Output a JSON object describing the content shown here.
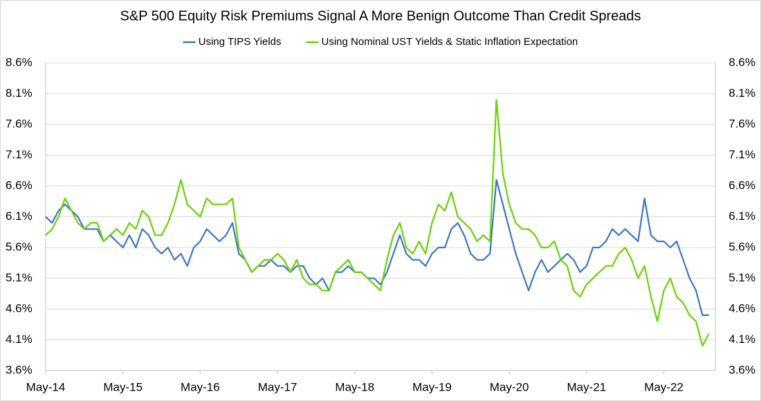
{
  "chart_data": {
    "type": "line",
    "title": "S&P 500 Equity Risk Premiums Signal A More Benign Outcome Than Credit Spreads",
    "x": [
      "2014-05",
      "2014-06",
      "2014-07",
      "2014-08",
      "2014-09",
      "2014-10",
      "2014-11",
      "2014-12",
      "2015-01",
      "2015-02",
      "2015-03",
      "2015-04",
      "2015-05",
      "2015-06",
      "2015-07",
      "2015-08",
      "2015-09",
      "2015-10",
      "2015-11",
      "2015-12",
      "2016-01",
      "2016-02",
      "2016-03",
      "2016-04",
      "2016-05",
      "2016-06",
      "2016-07",
      "2016-08",
      "2016-09",
      "2016-10",
      "2016-11",
      "2016-12",
      "2017-01",
      "2017-02",
      "2017-03",
      "2017-04",
      "2017-05",
      "2017-06",
      "2017-07",
      "2017-08",
      "2017-09",
      "2017-10",
      "2017-11",
      "2017-12",
      "2018-01",
      "2018-02",
      "2018-03",
      "2018-04",
      "2018-05",
      "2018-06",
      "2018-07",
      "2018-08",
      "2018-09",
      "2018-10",
      "2018-11",
      "2018-12",
      "2019-01",
      "2019-02",
      "2019-03",
      "2019-04",
      "2019-05",
      "2019-06",
      "2019-07",
      "2019-08",
      "2019-09",
      "2019-10",
      "2019-11",
      "2019-12",
      "2020-01",
      "2020-02",
      "2020-03",
      "2020-04",
      "2020-05",
      "2020-06",
      "2020-07",
      "2020-08",
      "2020-09",
      "2020-10",
      "2020-11",
      "2020-12",
      "2021-01",
      "2021-02",
      "2021-03",
      "2021-04",
      "2021-05",
      "2021-06",
      "2021-07",
      "2021-08",
      "2021-09",
      "2021-10",
      "2021-11",
      "2021-12",
      "2022-01",
      "2022-02",
      "2022-03",
      "2022-04",
      "2022-05",
      "2022-06",
      "2022-07",
      "2022-08",
      "2022-09",
      "2022-10",
      "2022-11",
      "2022-12"
    ],
    "series": [
      {
        "name": "Using TIPS Yields",
        "color": "#3a75c4",
        "values": [
          6.1,
          6.0,
          6.2,
          6.3,
          6.2,
          6.1,
          5.9,
          5.9,
          5.9,
          5.7,
          5.8,
          5.7,
          5.6,
          5.8,
          5.6,
          5.9,
          5.8,
          5.6,
          5.5,
          5.6,
          5.4,
          5.5,
          5.3,
          5.6,
          5.7,
          5.9,
          5.8,
          5.7,
          5.8,
          6.0,
          5.5,
          5.4,
          5.2,
          5.3,
          5.3,
          5.4,
          5.3,
          5.3,
          5.2,
          5.3,
          5.3,
          5.1,
          5.0,
          5.1,
          4.9,
          5.2,
          5.2,
          5.3,
          5.2,
          5.2,
          5.1,
          5.1,
          5.0,
          5.2,
          5.5,
          5.8,
          5.5,
          5.4,
          5.4,
          5.3,
          5.5,
          5.6,
          5.6,
          5.9,
          6.0,
          5.8,
          5.5,
          5.4,
          5.4,
          5.5,
          6.7,
          6.3,
          5.9,
          5.5,
          5.2,
          4.9,
          5.2,
          5.4,
          5.2,
          5.3,
          5.4,
          5.5,
          5.4,
          5.2,
          5.3,
          5.6,
          5.6,
          5.7,
          5.9,
          5.8,
          5.9,
          5.8,
          5.7,
          6.4,
          5.8,
          5.7,
          5.7,
          5.6,
          5.7,
          5.4,
          5.1,
          4.9,
          4.5,
          4.5
        ]
      },
      {
        "name": "Using Nominal UST Yields & Static Inflation Expectation",
        "color": "#66d300",
        "values": [
          5.8,
          5.9,
          6.1,
          6.4,
          6.2,
          6.0,
          5.9,
          6.0,
          6.0,
          5.7,
          5.8,
          5.9,
          5.8,
          6.0,
          5.9,
          6.2,
          6.1,
          5.8,
          5.8,
          6.0,
          6.3,
          6.7,
          6.3,
          6.2,
          6.1,
          6.4,
          6.3,
          6.3,
          6.3,
          6.4,
          5.6,
          5.4,
          5.2,
          5.3,
          5.4,
          5.4,
          5.5,
          5.4,
          5.2,
          5.4,
          5.1,
          5.0,
          5.0,
          4.9,
          4.9,
          5.2,
          5.3,
          5.4,
          5.2,
          5.2,
          5.1,
          5.0,
          4.9,
          5.4,
          5.8,
          6.0,
          5.6,
          5.5,
          5.7,
          5.5,
          6.0,
          6.3,
          6.2,
          6.5,
          6.1,
          6.0,
          5.9,
          5.7,
          5.8,
          5.7,
          8.0,
          6.8,
          6.3,
          6.0,
          5.9,
          5.9,
          5.8,
          5.6,
          5.6,
          5.7,
          5.4,
          5.3,
          4.9,
          4.8,
          5.0,
          5.1,
          5.2,
          5.3,
          5.3,
          5.5,
          5.6,
          5.4,
          5.1,
          5.3,
          4.8,
          4.4,
          4.9,
          5.1,
          4.8,
          4.7,
          4.5,
          4.4,
          4.0,
          4.2
        ]
      }
    ],
    "xlim": [
      "2014-05",
      "2023-01"
    ],
    "xticks": [
      {
        "value": "2014-05",
        "label": "May-14"
      },
      {
        "value": "2015-05",
        "label": "May-15"
      },
      {
        "value": "2016-05",
        "label": "May-16"
      },
      {
        "value": "2017-05",
        "label": "May-17"
      },
      {
        "value": "2018-05",
        "label": "May-18"
      },
      {
        "value": "2019-05",
        "label": "May-19"
      },
      {
        "value": "2020-05",
        "label": "May-20"
      },
      {
        "value": "2021-05",
        "label": "May-21"
      },
      {
        "value": "2022-05",
        "label": "May-22"
      }
    ],
    "ylim": [
      3.6,
      8.6
    ],
    "yticks": [
      {
        "value": 3.6,
        "label": "3.6%"
      },
      {
        "value": 4.1,
        "label": "4.1%"
      },
      {
        "value": 4.6,
        "label": "4.6%"
      },
      {
        "value": 5.1,
        "label": "5.1%"
      },
      {
        "value": 5.6,
        "label": "5.6%"
      },
      {
        "value": 6.1,
        "label": "6.1%"
      },
      {
        "value": 6.6,
        "label": "6.6%"
      },
      {
        "value": 7.1,
        "label": "7.1%"
      },
      {
        "value": 7.6,
        "label": "7.6%"
      },
      {
        "value": 8.1,
        "label": "8.1%"
      },
      {
        "value": 8.6,
        "label": "8.6%"
      }
    ],
    "y2lim": [
      3.6,
      8.6
    ],
    "y2ticks": [
      {
        "value": 3.6,
        "label": "3.6%"
      },
      {
        "value": 4.1,
        "label": "4.1%"
      },
      {
        "value": 4.6,
        "label": "4.6%"
      },
      {
        "value": 5.1,
        "label": "5.1%"
      },
      {
        "value": 5.6,
        "label": "5.6%"
      },
      {
        "value": 6.1,
        "label": "6.1%"
      },
      {
        "value": 6.6,
        "label": "6.6%"
      },
      {
        "value": 7.1,
        "label": "7.1%"
      },
      {
        "value": 7.6,
        "label": "7.6%"
      },
      {
        "value": 8.1,
        "label": "8.1%"
      },
      {
        "value": 8.6,
        "label": "8.6%"
      }
    ],
    "grid": true,
    "legend": "top"
  }
}
